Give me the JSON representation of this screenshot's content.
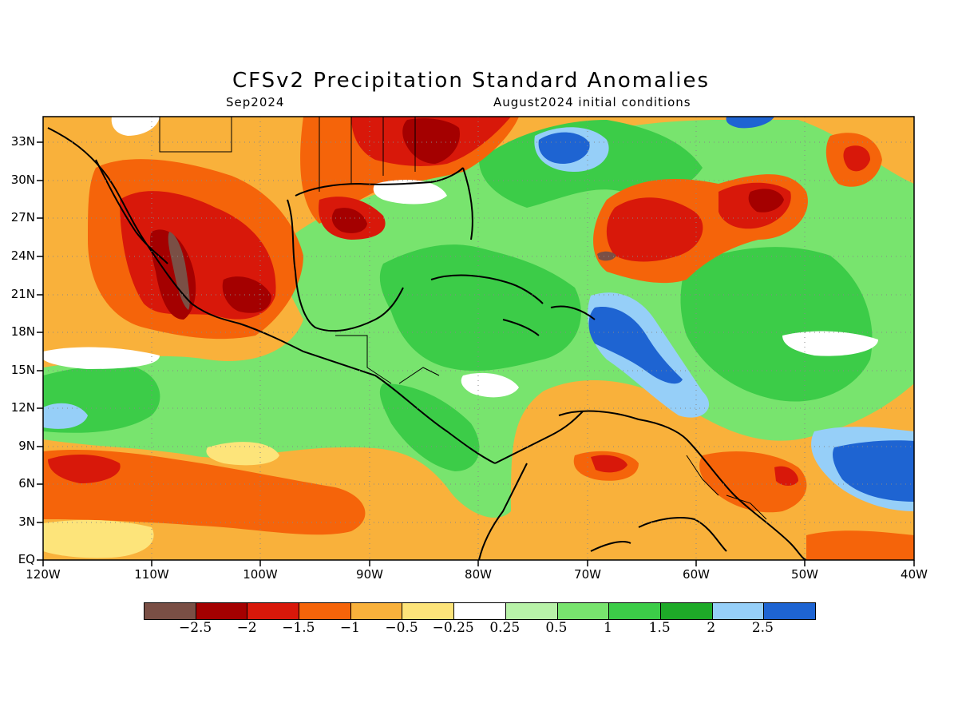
{
  "title": "CFSv2 Precipitation Standard Anomalies",
  "subtitle_left": "Sep2024",
  "subtitle_right": "August2024 initial conditions",
  "lat_labels": [
    "33N",
    "30N",
    "27N",
    "24N",
    "21N",
    "18N",
    "15N",
    "12N",
    "9N",
    "6N",
    "3N",
    "EQ"
  ],
  "lon_labels": [
    "120W",
    "110W",
    "100W",
    "90W",
    "80W",
    "70W",
    "60W",
    "50W",
    "40W"
  ],
  "colorbar": {
    "colors": [
      "#7a4f45",
      "#a40000",
      "#d8180a",
      "#f5640a",
      "#f9b13b",
      "#fde47a",
      "#ffffff",
      "#b8f2a8",
      "#78e46e",
      "#3ccc48",
      "#1eaa28",
      "#96cff8",
      "#1e64d2"
    ],
    "labels": [
      "−2.5",
      "−2",
      "−1.5",
      "−1",
      "−0.5",
      "−0.25",
      "0.25",
      "0.5",
      "1",
      "1.5",
      "2",
      "2.5"
    ]
  },
  "legend_meaning": {
    "dry_extreme": "#7a4f45",
    "wet_extreme": "#1e64d2"
  }
}
